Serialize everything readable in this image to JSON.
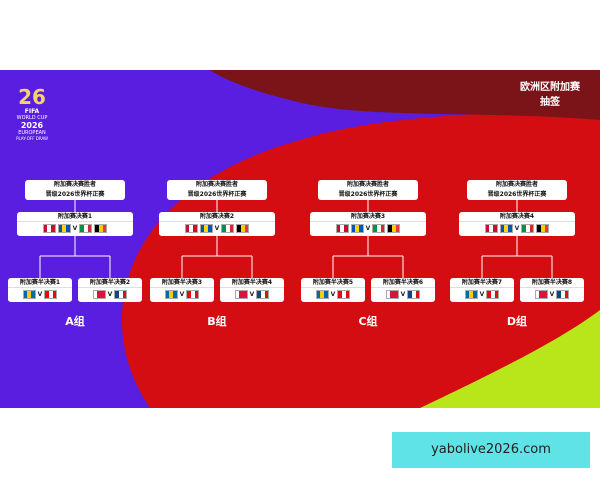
{
  "header": {
    "title": [
      "欧洲区附加赛",
      "抽签"
    ]
  },
  "logo": {
    "fifa": "FIFA",
    "lines": [
      "WORLD CUP",
      "2026",
      "EUROPEAN",
      "PLAY-OFF DRAW"
    ]
  },
  "versus": "V",
  "groups": [
    {
      "label": "A组",
      "winner": [
        "附加赛决赛胜者",
        "晋级2026世界杯正赛"
      ],
      "final": "附加赛决赛1",
      "semis": [
        "附加赛半决赛1",
        "附加赛半决赛2"
      ]
    },
    {
      "label": "B组",
      "winner": [
        "附加赛决赛胜者",
        "晋级2026世界杯正赛"
      ],
      "final": "附加赛决赛2",
      "semis": [
        "附加赛半决赛3",
        "附加赛半决赛4"
      ]
    },
    {
      "label": "C组",
      "winner": [
        "附加赛决赛胜者",
        "晋级2026世界杯正赛"
      ],
      "final": "附加赛决赛3",
      "semis": [
        "附加赛半决赛5",
        "附加赛半决赛6"
      ]
    },
    {
      "label": "D组",
      "winner": [
        "附加赛决赛胜者",
        "晋级2026世界杯正赛"
      ],
      "final": "附加赛决赛4",
      "semis": [
        "附加赛半决赛7",
        "附加赛半决赛8"
      ]
    }
  ],
  "watermark": "yabolive2026.com"
}
